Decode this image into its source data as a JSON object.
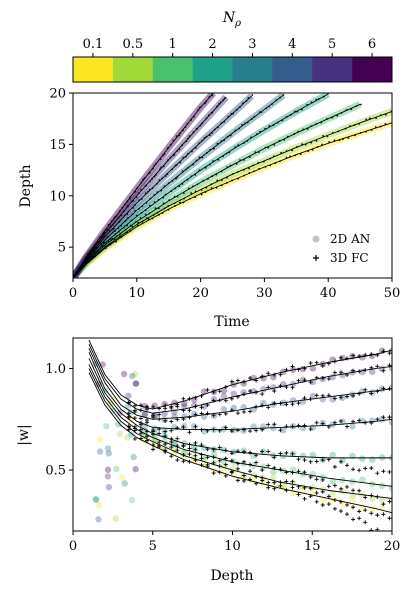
{
  "chart_data": [
    {
      "type": "colorbar",
      "label": "N_ρ",
      "label_main": "N",
      "label_sub": "ρ",
      "ticks": [
        "0.1",
        "0.5",
        "1",
        "2",
        "3",
        "4",
        "5",
        "6"
      ],
      "colors": [
        "#fde725",
        "#a0da39",
        "#4ac16d",
        "#1fa187",
        "#277f8e",
        "#365c8d",
        "#46327e",
        "#440154"
      ]
    },
    {
      "type": "line",
      "xlabel": "Time",
      "ylabel": "Depth",
      "xlim": [
        0,
        50
      ],
      "ylim": [
        2,
        20
      ],
      "xticks": [
        "0",
        "10",
        "20",
        "30",
        "40",
        "50"
      ],
      "yticks": [
        "5",
        "10",
        "15",
        "20"
      ],
      "legend": {
        "position": "lower-right",
        "entries": [
          "2D AN",
          "3D FC"
        ]
      },
      "series": [
        {
          "n_rho": "0.1",
          "color": "#fde725",
          "x": [
            0,
            2,
            5,
            10,
            15,
            20,
            25,
            30,
            35,
            40,
            45,
            50
          ],
          "y": [
            2.0,
            3.3,
            4.9,
            7.0,
            8.7,
            10.2,
            11.5,
            12.8,
            14.0,
            15.1,
            16.1,
            17.1
          ]
        },
        {
          "n_rho": "0.5",
          "color": "#a0da39",
          "x": [
            0,
            2,
            5,
            10,
            15,
            20,
            25,
            30,
            35,
            40,
            45,
            50
          ],
          "y": [
            2.0,
            3.4,
            5.0,
            7.2,
            9.0,
            10.6,
            12.1,
            13.4,
            14.7,
            15.9,
            17.1,
            18.2
          ]
        },
        {
          "n_rho": "1",
          "color": "#4ac16d",
          "x": [
            0,
            2,
            5,
            10,
            15,
            20,
            25,
            30,
            35,
            40,
            45
          ],
          "y": [
            2.0,
            3.5,
            5.2,
            7.5,
            9.5,
            11.3,
            13.0,
            14.6,
            16.1,
            17.5,
            18.9
          ]
        },
        {
          "n_rho": "2",
          "color": "#1fa187",
          "x": [
            0,
            2,
            5,
            10,
            15,
            20,
            25,
            30,
            35,
            40
          ],
          "y": [
            2.0,
            3.6,
            5.4,
            8.0,
            10.3,
            12.5,
            14.5,
            16.4,
            18.2,
            19.9
          ]
        },
        {
          "n_rho": "3",
          "color": "#277f8e",
          "x": [
            0,
            2,
            5,
            10,
            15,
            20,
            25,
            30,
            33
          ],
          "y": [
            2.0,
            3.7,
            5.7,
            8.6,
            11.2,
            13.7,
            16.1,
            18.4,
            19.8
          ]
        },
        {
          "n_rho": "4",
          "color": "#365c8d",
          "x": [
            0,
            2,
            5,
            10,
            15,
            20,
            25,
            28
          ],
          "y": [
            2.0,
            3.8,
            6.0,
            9.3,
            12.3,
            15.2,
            18.0,
            19.7
          ]
        },
        {
          "n_rho": "5",
          "color": "#46327e",
          "x": [
            0,
            2,
            5,
            10,
            15,
            20,
            24
          ],
          "y": [
            2.0,
            3.9,
            6.3,
            10.0,
            13.5,
            16.9,
            19.6
          ]
        },
        {
          "n_rho": "6",
          "color": "#440154",
          "x": [
            0,
            2,
            5,
            10,
            15,
            20,
            22
          ],
          "y": [
            2.0,
            4.0,
            6.6,
            10.7,
            14.7,
            18.6,
            20.0
          ]
        }
      ]
    },
    {
      "type": "scatter",
      "xlabel": "Depth",
      "ylabel": "|w|",
      "xlim": [
        0,
        20
      ],
      "ylim": [
        0.2,
        1.15
      ],
      "xticks": [
        "0",
        "5",
        "10",
        "15",
        "20"
      ],
      "yticks": [
        "0.5",
        "1.0"
      ],
      "series": [
        {
          "n_rho": "0.1",
          "color": "#fde725",
          "x": [
            1,
            2,
            3,
            4,
            5,
            7,
            10,
            13,
            16,
            19,
            20
          ],
          "y": [
            0.98,
            0.82,
            0.72,
            0.66,
            0.62,
            0.55,
            0.47,
            0.41,
            0.36,
            0.31,
            0.29
          ]
        },
        {
          "n_rho": "0.5",
          "color": "#a0da39",
          "x": [
            1,
            2,
            3,
            4,
            5,
            7,
            10,
            13,
            16,
            19,
            20
          ],
          "y": [
            1.0,
            0.84,
            0.74,
            0.68,
            0.64,
            0.57,
            0.5,
            0.44,
            0.4,
            0.37,
            0.36
          ]
        },
        {
          "n_rho": "1",
          "color": "#4ac16d",
          "x": [
            1,
            2,
            3,
            4,
            5,
            7,
            10,
            13,
            16,
            19,
            20
          ],
          "y": [
            1.02,
            0.86,
            0.76,
            0.7,
            0.66,
            0.6,
            0.54,
            0.5,
            0.46,
            0.43,
            0.42
          ]
        },
        {
          "n_rho": "2",
          "color": "#1fa187",
          "x": [
            1,
            2,
            3,
            4,
            5,
            7,
            10,
            13,
            16,
            19,
            20
          ],
          "y": [
            1.05,
            0.88,
            0.78,
            0.72,
            0.68,
            0.63,
            0.59,
            0.57,
            0.56,
            0.56,
            0.56
          ]
        },
        {
          "n_rho": "3",
          "color": "#277f8e",
          "x": [
            1,
            2,
            3,
            4,
            5,
            7,
            10,
            13,
            16,
            19,
            20
          ],
          "y": [
            1.08,
            0.9,
            0.8,
            0.74,
            0.71,
            0.7,
            0.7,
            0.71,
            0.72,
            0.74,
            0.75
          ]
        },
        {
          "n_rho": "4",
          "color": "#365c8d",
          "x": [
            1,
            2,
            3,
            4,
            5,
            7,
            10,
            13,
            16,
            19,
            20
          ],
          "y": [
            1.1,
            0.93,
            0.82,
            0.77,
            0.75,
            0.76,
            0.79,
            0.83,
            0.86,
            0.89,
            0.9
          ]
        },
        {
          "n_rho": "5",
          "color": "#46327e",
          "x": [
            1,
            2,
            3,
            4,
            5,
            7,
            10,
            13,
            16,
            19,
            20
          ],
          "y": [
            1.12,
            0.95,
            0.85,
            0.8,
            0.78,
            0.8,
            0.86,
            0.91,
            0.96,
            1.0,
            1.01
          ]
        },
        {
          "n_rho": "6",
          "color": "#440154",
          "x": [
            1,
            2,
            3,
            4,
            5,
            7,
            10,
            13,
            16,
            19,
            20
          ],
          "y": [
            1.14,
            0.97,
            0.87,
            0.82,
            0.8,
            0.84,
            0.92,
            0.98,
            1.03,
            1.07,
            1.09
          ]
        }
      ]
    }
  ]
}
